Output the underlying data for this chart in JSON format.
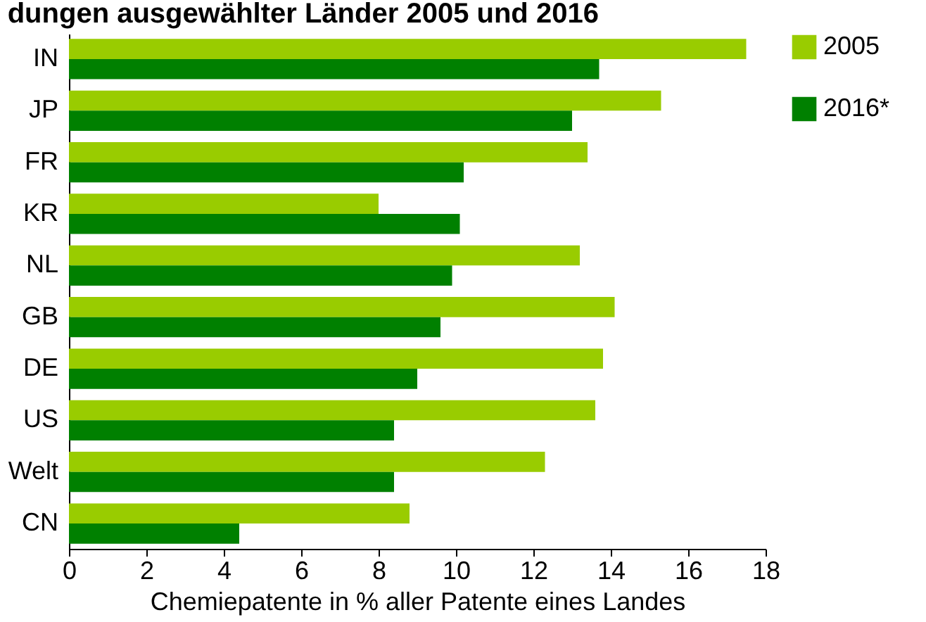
{
  "chart_data": {
    "type": "bar",
    "orientation": "horizontal",
    "title": "dungen ausgewählter Länder 2005 und 2016",
    "xlabel": "Chemiepatente in % aller Patente eines Landes",
    "categories": [
      "IN",
      "JP",
      "FR",
      "KR",
      "NL",
      "GB",
      "DE",
      "US",
      "Welt",
      "CN"
    ],
    "series": [
      {
        "name": "2005",
        "color": "#99cc00",
        "values": [
          17.5,
          15.3,
          13.4,
          8.0,
          13.2,
          14.1,
          13.8,
          13.6,
          12.3,
          8.8
        ]
      },
      {
        "name": "2016*",
        "color": "#008000",
        "values": [
          13.7,
          13.0,
          10.2,
          10.1,
          9.9,
          9.6,
          9.0,
          8.4,
          8.4,
          4.4
        ]
      }
    ],
    "xlim": [
      0,
      18
    ],
    "xticks": [
      0,
      2,
      4,
      6,
      8,
      10,
      12,
      14,
      16,
      18
    ],
    "grid": false,
    "legend": "right"
  }
}
